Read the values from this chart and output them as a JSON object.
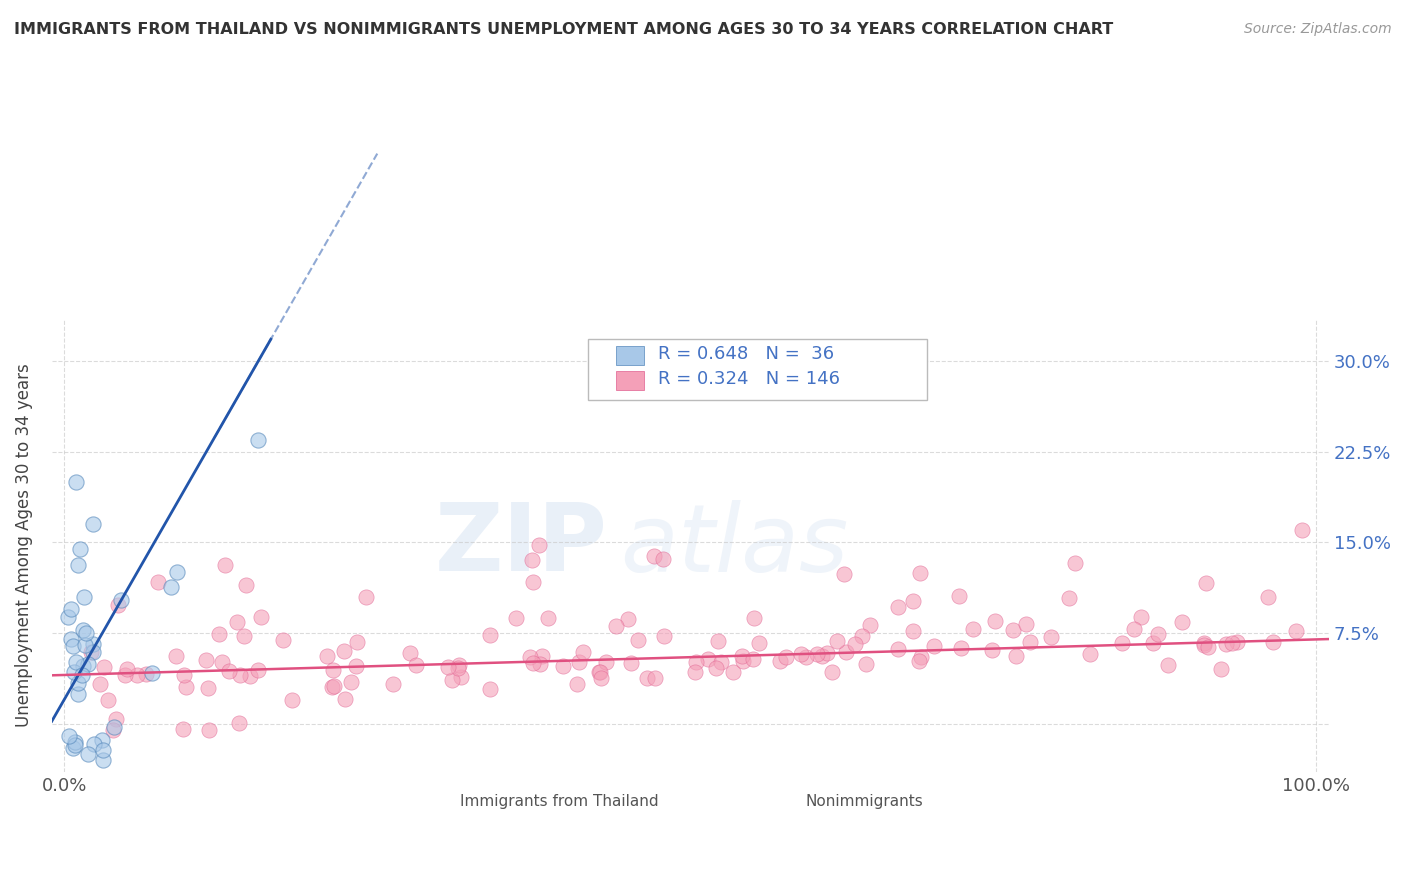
{
  "title": "IMMIGRANTS FROM THAILAND VS NONIMMIGRANTS UNEMPLOYMENT AMONG AGES 30 TO 34 YEARS CORRELATION CHART",
  "source": "Source: ZipAtlas.com",
  "ylabel": "Unemployment Among Ages 30 to 34 years",
  "xlim": [
    -0.01,
    1.01
  ],
  "ylim": [
    -0.04,
    0.335
  ],
  "xticks": [
    0.0,
    1.0
  ],
  "xticklabels": [
    "0.0%",
    "100.0%"
  ],
  "ytick_positions": [
    0.0,
    0.075,
    0.15,
    0.225,
    0.3
  ],
  "yticklabels": [
    "",
    "7.5%",
    "15.0%",
    "22.5%",
    "30.0%"
  ],
  "blue_R": 0.648,
  "blue_N": 36,
  "pink_R": 0.324,
  "pink_N": 146,
  "blue_color": "#a8c8e8",
  "pink_color": "#f4a0b8",
  "blue_edge_color": "#5588bb",
  "pink_edge_color": "#e06090",
  "blue_line_color": "#2255aa",
  "pink_line_color": "#e05080",
  "watermark_zip": "ZIP",
  "watermark_atlas": "atlas",
  "background_color": "#ffffff",
  "grid_color": "#cccccc",
  "title_color": "#333333",
  "legend_text_color": "#4472c4",
  "ylabel_right_color": "#4472c4"
}
